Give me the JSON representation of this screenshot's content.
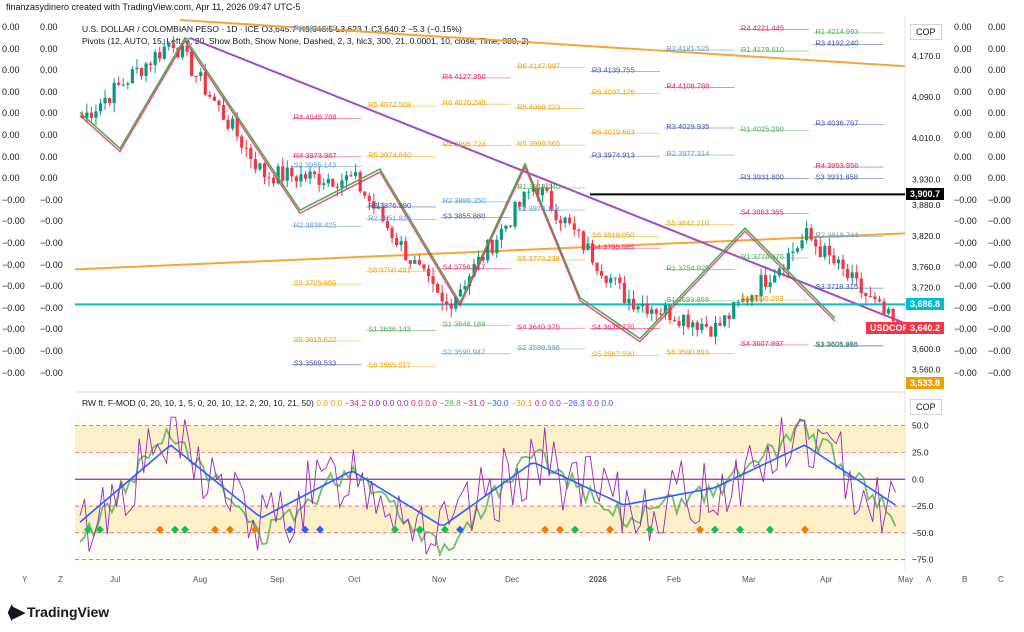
{
  "header": {
    "created_line": "finanzasydinero created with TradingView.com, Apr 11, 2026 09:47 UTC-5",
    "symbol_line": "U.S. DOLLAR / COLOMBIAN PESO · 1D · ICE  O3,645.7  H3,646.5  L3,623.1  C3,640.2  −5.3 (−0.15%)",
    "pivots_line": "Pivots (12, AUTO, 15, Left, 8, 20, Show Both, Show None, Dashed, 2, 3, hlc3, 300, 21, 0.0001, 10, close, Time, 300, 2)",
    "osc_line": "RW ft. F-MOD (0, 20, 10, 1, 5, 0, 20, 10, 12, 2, 20, 10, 21, 50)",
    "osc_values": [
      "0.0",
      "0.0",
      "−34.2",
      "0.0",
      "0.0",
      "0.0",
      "0.0",
      "0.0",
      "−28.8",
      "−31.0",
      "−30.0",
      "−30.1",
      "0.0",
      "0.0",
      "−26.3",
      "0.0",
      "0.0"
    ],
    "osc_colors": [
      "#f0a000",
      "#f0a000",
      "#e91e63",
      "#9c27b0",
      "#9c27b0",
      "#9c27b0",
      "#e91e63",
      "#e91e63",
      "#4caf50",
      "#e91e63",
      "#2962ff",
      "#f0a000",
      "#e91e63",
      "#9c27b0",
      "#2962ff",
      "#9c27b0",
      "#2962ff"
    ]
  },
  "left_scale": {
    "rows": [
      "0.00",
      "0.00",
      "0.00",
      "0.00",
      "0.00",
      "0.00",
      "0.00",
      "0.00",
      "−0.00",
      "−0.00",
      "−0.00",
      "−0.00",
      "−0.00",
      "−0.00",
      "−0.00",
      "−0.00",
      "−0.00"
    ]
  },
  "right_scale": {
    "rows": [
      "0.00",
      "0.00",
      "0.00",
      "0.00",
      "0.00",
      "0.00",
      "0.00",
      "0.00",
      "−0.00",
      "−0.00",
      "−0.00",
      "−0.00",
      "−0.00",
      "−0.00",
      "−0.00",
      "−0.00",
      "−0.00"
    ]
  },
  "price_axis": {
    "unit_label": "COP",
    "ticks": [
      "4,170.0",
      "4,090.0",
      "4,010.0",
      "3,930.0",
      "3,880.0",
      "3,820.0",
      "3,760.0",
      "3,720.0",
      "3,600.0",
      "3,560.0"
    ],
    "tags": [
      {
        "label": "3,900.7",
        "color": "#000000"
      },
      {
        "label": "3,686.8",
        "color": "#00bcd4"
      },
      {
        "label": "USDCOP",
        "color": "#f23645"
      },
      {
        "label": "3,640.2",
        "color": "#f23645"
      },
      {
        "label": "3,533.8",
        "color": "#f0a000"
      }
    ]
  },
  "osc_axis": {
    "unit_label": "COP",
    "ticks": [
      "50.0",
      "25.0",
      "0.0",
      "−25.0",
      "−50.0",
      "−75.0"
    ]
  },
  "x_axis": {
    "labels": [
      "Jul",
      "Aug",
      "Sep",
      "Oct",
      "Nov",
      "Dec",
      "2026",
      "Feb",
      "Mar",
      "Apr",
      "May"
    ],
    "left_letters": [
      "Y",
      "Z"
    ],
    "right_letters": [
      "A",
      "B",
      "C"
    ]
  },
  "pivot_labels": [
    {
      "t": "R2",
      "v": "4221.925",
      "c": "#5b9bd5"
    },
    {
      "t": "R1",
      "v": "4214.993",
      "c": "#4caf50"
    },
    {
      "t": "R1",
      "v": "4179.610",
      "c": "#4caf50"
    },
    {
      "t": "R2",
      "v": "4181.525",
      "c": "#5b9bd5"
    },
    {
      "t": "R3",
      "v": "4139.755",
      "c": "#3f51b5"
    },
    {
      "t": "R6",
      "v": "4147.997",
      "c": "#f0a000"
    },
    {
      "t": "R4",
      "v": "4127.350",
      "c": "#e91e63"
    },
    {
      "t": "R5",
      "v": "4253.060",
      "c": "#f0a000"
    },
    {
      "t": "R6",
      "v": "4256.414",
      "c": "#f0a000"
    },
    {
      "t": "R3",
      "v": "4192.240",
      "c": "#3f51b5"
    },
    {
      "t": "R4",
      "v": "4221.445",
      "c": "#e91e63"
    },
    {
      "t": "R4",
      "v": "4108.780",
      "c": "#e91e63"
    },
    {
      "t": "R6",
      "v": "4097.176",
      "c": "#f0a000"
    },
    {
      "t": "R5",
      "v": "4068.223",
      "c": "#f0a000"
    },
    {
      "t": "R6",
      "v": "4076.249",
      "c": "#f0a000"
    },
    {
      "t": "R5",
      "v": "4072.508",
      "c": "#f0a000"
    },
    {
      "t": "R4",
      "v": "4048.708",
      "c": "#e91e63"
    },
    {
      "t": "R3",
      "v": "4036.767",
      "c": "#3f51b5"
    },
    {
      "t": "R1",
      "v": "4025.290",
      "c": "#4caf50"
    },
    {
      "t": "R3",
      "v": "4029.935",
      "c": "#3f51b5"
    },
    {
      "t": "R6",
      "v": "4019.663",
      "c": "#f0a000"
    },
    {
      "t": "R5",
      "v": "3996.565",
      "c": "#f0a000"
    },
    {
      "t": "R6",
      "v": "3995.724",
      "c": "#f0a000"
    },
    {
      "t": "R5",
      "v": "3974.840",
      "c": "#f0a000"
    },
    {
      "t": "R4",
      "v": "3973.967",
      "c": "#e91e63"
    },
    {
      "t": "R4",
      "v": "3953.956",
      "c": "#e91e63"
    },
    {
      "t": "R3",
      "v": "3931.800",
      "c": "#3f51b5"
    },
    {
      "t": "R2",
      "v": "3977.314",
      "c": "#5b9bd5"
    },
    {
      "t": "R3",
      "v": "3974.913",
      "c": "#3f51b5"
    },
    {
      "t": "R1",
      "v": "3913.140",
      "c": "#4caf50"
    },
    {
      "t": "R2",
      "v": "3886.350",
      "c": "#5b9bd5"
    },
    {
      "t": "R3",
      "v": "3876.390",
      "c": "#3f51b5"
    },
    {
      "t": "S2",
      "v": "3955.143",
      "c": "#5b9bd5"
    },
    {
      "t": "S3",
      "v": "3931.858",
      "c": "#3f51b5"
    },
    {
      "t": "S4",
      "v": "3863.365",
      "c": "#e91e63"
    },
    {
      "t": "S5",
      "v": "3842.210",
      "c": "#f0a000"
    },
    {
      "t": "S6",
      "v": "3819.050",
      "c": "#f0a000"
    },
    {
      "t": "S2",
      "v": "3870.118",
      "c": "#5b9bd5"
    },
    {
      "t": "S3",
      "v": "3855.880",
      "c": "#3f51b5"
    },
    {
      "t": "R2",
      "v": "3851.816",
      "c": "#5b9bd5"
    },
    {
      "t": "R2",
      "v": "3838.425",
      "c": "#5b9bd5"
    },
    {
      "t": "R2",
      "v": "3818.744",
      "c": "#5b9bd5"
    },
    {
      "t": "R1",
      "v": "3776.976",
      "c": "#4caf50"
    },
    {
      "t": "R1",
      "v": "3754.820",
      "c": "#4caf50"
    },
    {
      "t": "S4",
      "v": "3795.985",
      "c": "#e91e63"
    },
    {
      "t": "S5",
      "v": "3773.238",
      "c": "#f0a000"
    },
    {
      "t": "S4",
      "v": "3756.617",
      "c": "#e91e63"
    },
    {
      "t": "S6",
      "v": "3750.491",
      "c": "#f0a000"
    },
    {
      "t": "S5",
      "v": "3725.955",
      "c": "#f0a000"
    },
    {
      "t": "S3",
      "v": "3718.315",
      "c": "#3f51b5"
    },
    {
      "t": "S6",
      "v": "3695.293",
      "c": "#f0a000"
    },
    {
      "t": "S1",
      "v": "3693.869",
      "c": "#4caf50"
    },
    {
      "t": "S4",
      "v": "3639.770",
      "c": "#e91e63"
    },
    {
      "t": "S4",
      "v": "3640.370",
      "c": "#e91e63"
    },
    {
      "t": "S1",
      "v": "3646.188",
      "c": "#4caf50"
    },
    {
      "t": "S1",
      "v": "3636.143",
      "c": "#4caf50"
    },
    {
      "t": "S5",
      "v": "3615.622",
      "c": "#f0a000"
    },
    {
      "t": "S3",
      "v": "3605.995",
      "c": "#3f51b5"
    },
    {
      "t": "S4",
      "v": "3607.997",
      "c": "#e91e63"
    },
    {
      "t": "S6",
      "v": "3590.893",
      "c": "#f0a000"
    },
    {
      "t": "S5",
      "v": "3587.590",
      "c": "#f0a000"
    },
    {
      "t": "S2",
      "v": "3599.996",
      "c": "#5b9bd5"
    },
    {
      "t": "S2",
      "v": "3590.947",
      "c": "#5b9bd5"
    },
    {
      "t": "S6",
      "v": "3565.517",
      "c": "#f0a000"
    },
    {
      "t": "S3",
      "v": "3569.533",
      "c": "#3f51b5"
    },
    {
      "t": "S1",
      "v": "3606.456",
      "c": "#4caf50"
    }
  ],
  "chart_data": {
    "type": "line",
    "title": "U.S. DOLLAR / COLOMBIAN PESO",
    "xlabel": "",
    "ylabel": "COP",
    "ylim": [
      3530,
      4240
    ],
    "categories": [
      "Jul",
      "Aug",
      "Sep",
      "Oct",
      "Nov",
      "Dec",
      "2026",
      "Feb",
      "Mar",
      "Apr"
    ],
    "series": [
      {
        "name": "USDCOP",
        "values": [
          4050,
          4200,
          3940,
          3930,
          3680,
          3920,
          3700,
          3640,
          3820,
          3640
        ]
      }
    ],
    "last_price": 3640.2,
    "oscillator": {
      "name": "RW ft. F-MOD",
      "ylim": [
        -80,
        60
      ],
      "values": [
        -50,
        40,
        -45,
        10,
        -55,
        20,
        -30,
        -10,
        40,
        -30
      ]
    }
  },
  "branding": {
    "logo_text": "TradingView"
  }
}
